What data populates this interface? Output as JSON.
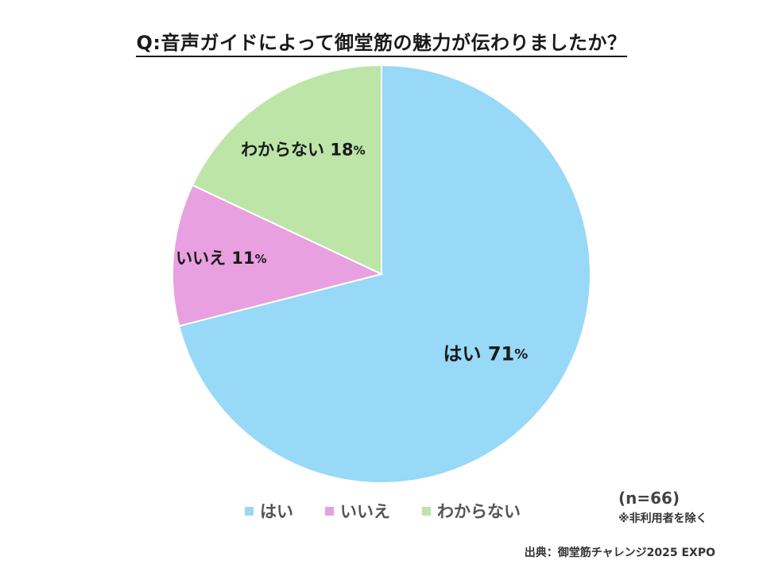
{
  "chart_data": {
    "type": "pie",
    "title": "Q:音声ガイドによって御堂筋の魅力が伝わりましたか？",
    "categories": [
      "はい",
      "いいえ",
      "わからない"
    ],
    "values": [
      71,
      11,
      18
    ],
    "value_labels": [
      "71",
      "11",
      "18"
    ],
    "unit": "%",
    "colors": [
      "#97D9F6",
      "#E8A0E0",
      "#BDE5A8"
    ],
    "legend_position": "bottom"
  },
  "notes": {
    "sample_size": "(n=66)",
    "exclusion": "※非利用者を除く"
  },
  "source": "出典：御堂筋チャレンジ2025 EXPO"
}
